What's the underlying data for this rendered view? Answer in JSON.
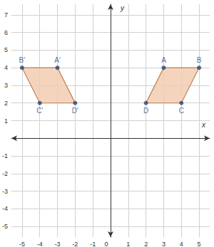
{
  "chart_data": {
    "type": "polygon",
    "x_label": "x",
    "y_label": "y",
    "xlim": [
      -5.6,
      5.6
    ],
    "ylim": [
      -5.6,
      7.6
    ],
    "xticks": [
      -5,
      -4,
      -3,
      -2,
      -1,
      0,
      1,
      2,
      3,
      4,
      5
    ],
    "yticks": [
      -5,
      -4,
      -3,
      -2,
      -1,
      0,
      1,
      2,
      3,
      4,
      5,
      6,
      7
    ],
    "grid": true,
    "color": "#f3cdb2",
    "shapes": [
      {
        "points": [
          {
            "label": "A",
            "x": 3,
            "y": 4
          },
          {
            "label": "B",
            "x": 5,
            "y": 4
          },
          {
            "label": "C",
            "x": 4,
            "y": 2
          },
          {
            "label": "D",
            "x": 2,
            "y": 2
          }
        ]
      },
      {
        "points": [
          {
            "label": "A'",
            "x": -3,
            "y": 4
          },
          {
            "label": "B'",
            "x": -5,
            "y": 4
          },
          {
            "label": "C'",
            "x": -4,
            "y": 2
          },
          {
            "label": "D'",
            "x": -2,
            "y": 2
          }
        ]
      }
    ]
  }
}
